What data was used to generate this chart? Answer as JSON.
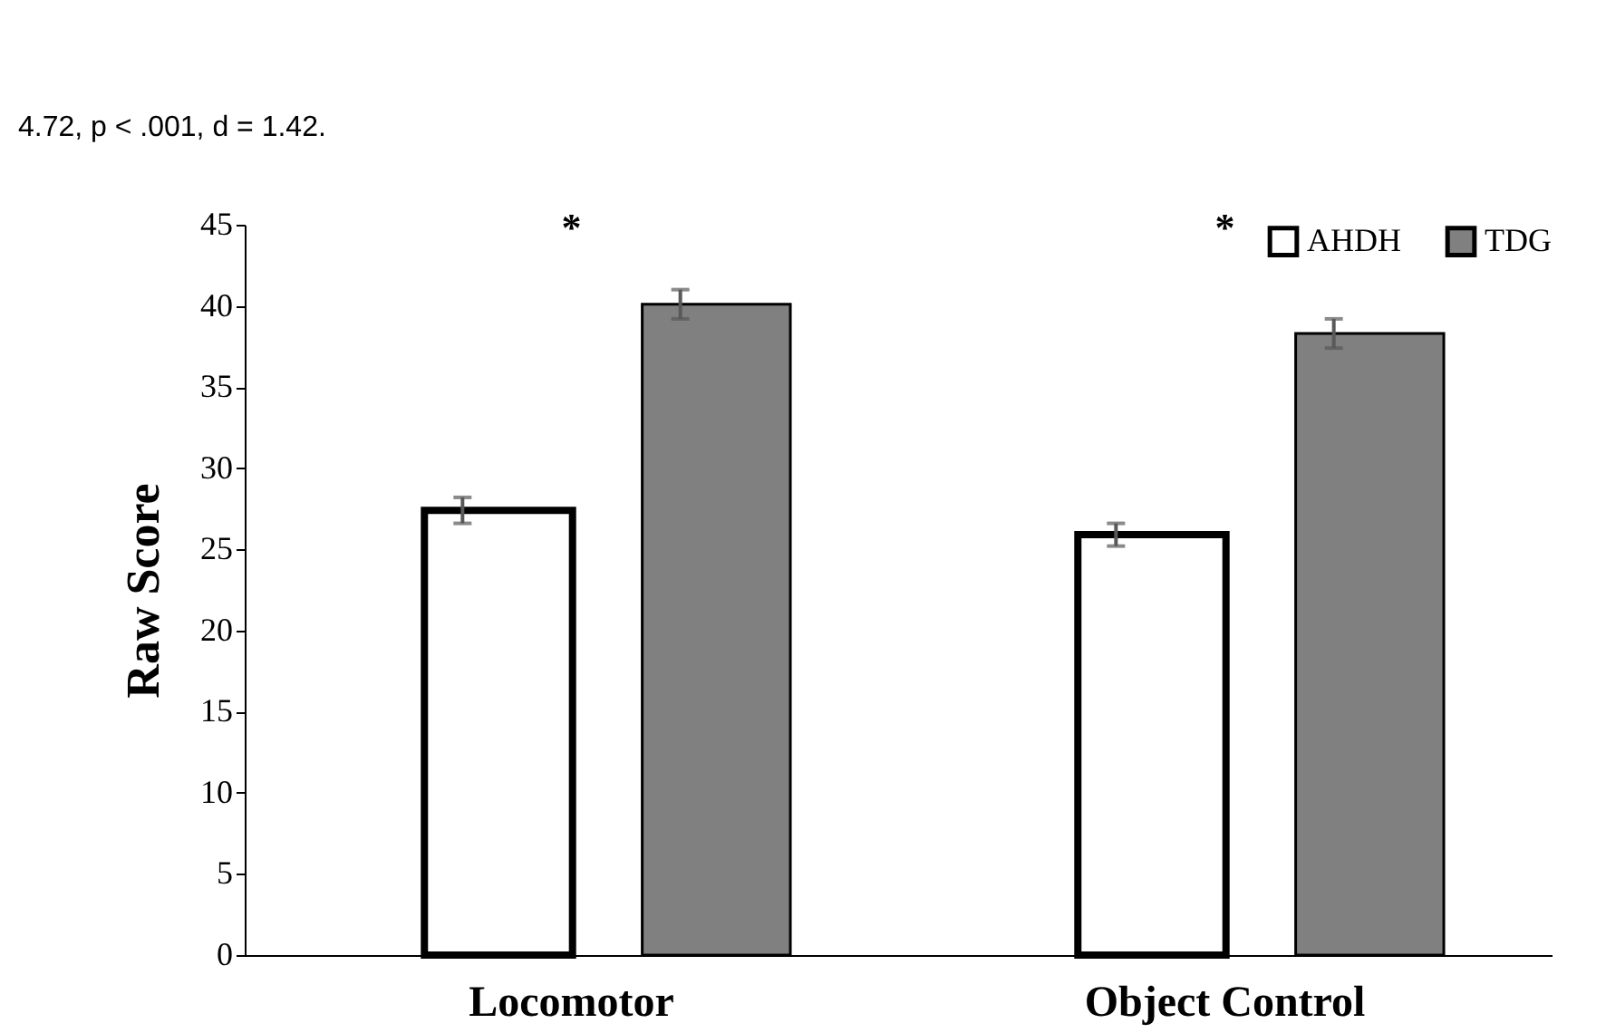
{
  "chart_data": {
    "type": "bar",
    "ylabel": "Raw Score",
    "categories": [
      "Locomotor",
      "Object Control"
    ],
    "series": [
      {
        "name": "AHDH",
        "color": "#ffffff",
        "values": [
          27.4,
          25.9
        ],
        "errors": [
          0.8,
          0.7
        ]
      },
      {
        "name": "TDG",
        "color": "#808080",
        "values": [
          40.1,
          38.3
        ],
        "errors": [
          0.9,
          0.9
        ]
      }
    ],
    "ylim": [
      0,
      45
    ],
    "yticks": [
      0,
      5,
      10,
      15,
      20,
      25,
      30,
      35,
      40,
      45
    ],
    "grid": false,
    "legend": "top right",
    "annotations": [
      "4.72, p < .001, d = 1.42.",
      "*",
      "*"
    ]
  }
}
